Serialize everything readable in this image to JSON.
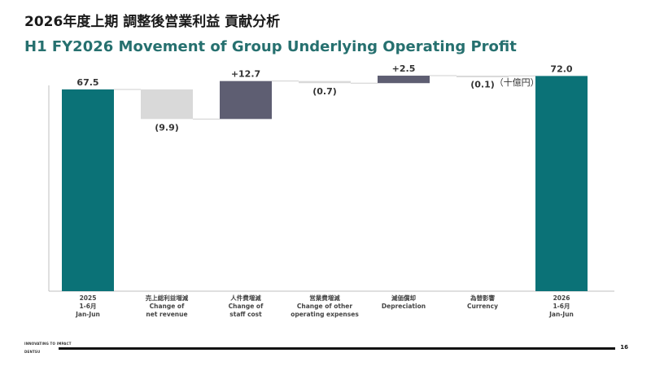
{
  "header": {
    "title_jp": "2026年度上期 調整後営業利益 貢献分析",
    "title_en": "H1 FY2026 Movement of Group Underlying Operating Profit"
  },
  "unit_label": "（十億円） （JPY bn）",
  "chart_data": {
    "type": "waterfall",
    "title": "H1 FY2026 Movement of Group Underlying Operating Profit",
    "unit": "JPY bn",
    "ylim": [
      0,
      80
    ],
    "grid": false,
    "legend": "none",
    "steps": [
      {
        "kind": "total",
        "value": 67.5,
        "label": "67.5",
        "category_lines": [
          "2025",
          "1-6月",
          "Jan-Jun"
        ],
        "color": "#0b7277"
      },
      {
        "kind": "delta",
        "value": -9.9,
        "label": "(9.9)",
        "category_lines": [
          "売上総利益増減",
          "Change of",
          "net revenue"
        ],
        "color": "#d9d9d9"
      },
      {
        "kind": "delta",
        "value": 12.7,
        "label": "+12.7",
        "category_lines": [
          "人件費増減",
          "Change of",
          "staff cost"
        ],
        "color": "#5e5e72"
      },
      {
        "kind": "delta",
        "value": -0.7,
        "label": "(0.7)",
        "category_lines": [
          "営業費増減",
          "Change of other",
          "operating expenses"
        ],
        "color": "#d9d9d9"
      },
      {
        "kind": "delta",
        "value": 2.5,
        "label": "+2.5",
        "category_lines": [
          "減価償却",
          "Depreciation"
        ],
        "color": "#5e5e72"
      },
      {
        "kind": "delta",
        "value": -0.1,
        "label": "(0.1)",
        "category_lines": [
          "為替影響",
          "Currency"
        ],
        "color": "#d9d9d9"
      },
      {
        "kind": "total",
        "value": 72.0,
        "label": "72.0",
        "category_lines": [
          "2026",
          "1-6月",
          "Jan-Jun"
        ],
        "color": "#0b7277"
      }
    ]
  },
  "footer": {
    "logo_line1": "INNOVATING TO IMPACT",
    "logo_line2": "DENTSU",
    "page_number": "16"
  }
}
